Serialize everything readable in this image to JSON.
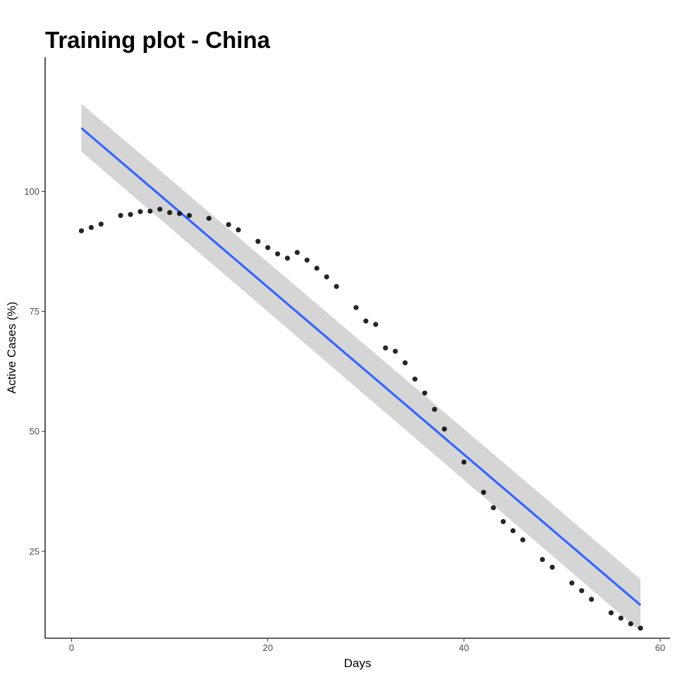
{
  "chart_data": {
    "type": "scatter",
    "title": "Training plot - China",
    "xlabel": "Days",
    "ylabel": "Active Cases (%)",
    "xlim": [
      -2.7,
      61.0
    ],
    "ylim": [
      6.9,
      128.0
    ],
    "x_ticks": [
      0,
      20,
      40,
      60
    ],
    "y_ticks": [
      25,
      50,
      75,
      100
    ],
    "grid": false,
    "legend": "none",
    "colors": {
      "points": "#000000",
      "fit_line": "#3366FF",
      "confidence_band": "#D3D3D3",
      "axis": "#000000",
      "tick_text": "#4D4D4D"
    },
    "series": [
      {
        "kind": "points",
        "x": [
          1,
          2,
          3,
          5,
          6,
          7,
          8,
          9,
          10,
          11,
          12,
          14,
          16,
          17,
          19,
          20,
          21,
          22,
          23,
          24,
          25,
          26,
          27,
          29,
          30,
          31,
          32,
          33,
          34,
          35,
          36,
          37,
          38,
          40,
          42,
          43,
          44,
          45,
          46,
          48,
          49,
          51,
          52,
          53,
          55,
          56,
          57,
          58
        ],
        "y": [
          91.8,
          92.5,
          93.2,
          95.0,
          95.2,
          95.8,
          95.9,
          96.3,
          95.6,
          95.4,
          95.0,
          94.4,
          93.1,
          92.0,
          89.6,
          88.3,
          87.0,
          86.1,
          87.3,
          85.7,
          84.0,
          82.2,
          80.2,
          75.8,
          73.0,
          72.3,
          67.4,
          66.7,
          64.3,
          60.9,
          58.0,
          54.6,
          50.5,
          43.6,
          37.3,
          34.1,
          31.2,
          29.3,
          27.4,
          23.3,
          21.7,
          18.4,
          16.8,
          15.0,
          12.2,
          11.1,
          9.9,
          9.0
        ]
      },
      {
        "kind": "linear_fit",
        "x": [
          1,
          58
        ],
        "y": [
          113.2,
          13.8
        ],
        "ci_lower": [
          108.3,
          8.3
        ],
        "ci_upper": [
          118.3,
          19.2
        ]
      }
    ]
  }
}
